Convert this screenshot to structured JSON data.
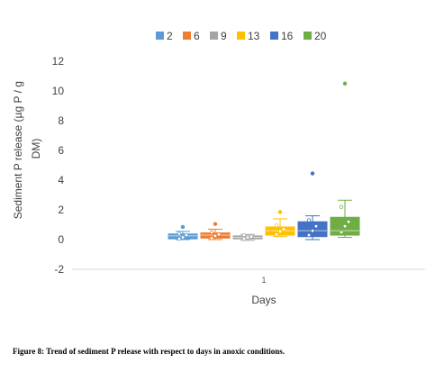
{
  "chart_data": {
    "type": "box",
    "title": "",
    "xlabel": "Days",
    "ylabel": "Sediment P release (µg P / g DM)",
    "ylabel_lines": [
      "Sediment P release (µg P / g",
      "DM)"
    ],
    "categories": [
      "1"
    ],
    "ylim": [
      -2,
      12
    ],
    "yticks": [
      -2,
      0,
      2,
      4,
      6,
      8,
      10,
      12
    ],
    "grid": false,
    "legend_position": "top",
    "series": [
      {
        "name": "2",
        "color": "#5B9BD5",
        "whisker_low": 0.0,
        "q1": 0.05,
        "median": 0.25,
        "q3": 0.38,
        "whisker_high": 0.55,
        "outliers": [
          0.85
        ],
        "points": [
          0.05,
          0.15,
          0.3,
          0.4
        ]
      },
      {
        "name": "6",
        "color": "#ED7D31",
        "whisker_low": 0.0,
        "q1": 0.1,
        "median": 0.3,
        "q3": 0.45,
        "whisker_high": 0.7,
        "outliers": [
          1.05
        ],
        "points": [
          0.1,
          0.25,
          0.35,
          0.5
        ]
      },
      {
        "name": "9",
        "color": "#A5A5A5",
        "whisker_low": -0.05,
        "q1": 0.05,
        "median": 0.15,
        "q3": 0.25,
        "whisker_high": 0.35,
        "outliers": [],
        "points": [
          0.05,
          0.15,
          0.2,
          0.3
        ]
      },
      {
        "name": "13",
        "color": "#FFC000",
        "whisker_low": 0.2,
        "q1": 0.3,
        "median": 0.6,
        "q3": 0.85,
        "whisker_high": 1.4,
        "outliers": [
          1.85
        ],
        "points": [
          0.35,
          0.55,
          0.7,
          0.95
        ]
      },
      {
        "name": "16",
        "color": "#4472C4",
        "whisker_low": 0.0,
        "q1": 0.2,
        "median": 0.6,
        "q3": 1.2,
        "whisker_high": 1.6,
        "outliers": [
          4.45
        ],
        "points": [
          0.3,
          0.6,
          0.9,
          1.3
        ]
      },
      {
        "name": "20",
        "color": "#70AD47",
        "whisker_low": 0.15,
        "q1": 0.3,
        "median": 0.6,
        "q3": 1.5,
        "whisker_high": 2.65,
        "outliers": [
          10.5
        ],
        "points": [
          0.5,
          0.9,
          1.2,
          2.2
        ]
      }
    ]
  },
  "caption": "Figure 8: Trend of sediment P release with respect to days in anoxic conditions."
}
